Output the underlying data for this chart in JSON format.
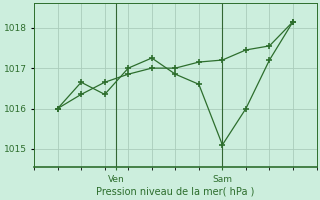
{
  "line_jagged_x": [
    0,
    1,
    2,
    3,
    4,
    5,
    6,
    7,
    8,
    9,
    10
  ],
  "line_jagged_y": [
    1016.0,
    1016.65,
    1016.35,
    1017.0,
    1017.25,
    1016.85,
    1016.6,
    1015.1,
    1016.0,
    1017.2,
    1018.15
  ],
  "line_trend_x": [
    0,
    1,
    2,
    3,
    4,
    5,
    6,
    7,
    8,
    9,
    10
  ],
  "line_trend_y": [
    1016.0,
    1016.35,
    1016.65,
    1016.85,
    1017.0,
    1017.0,
    1017.15,
    1017.2,
    1017.45,
    1017.55,
    1018.15
  ],
  "ven_x": 2.5,
  "sam_x": 7.0,
  "yticks": [
    1015,
    1016,
    1017,
    1018
  ],
  "ymin": 1014.55,
  "ymax": 1018.6,
  "xmin": -0.3,
  "xmax": 10.3,
  "line_color": "#2d6e2d",
  "bg_color": "#cceedd",
  "grid_color": "#aaccbb",
  "xlabel": "Pression niveau de la mer( hPa )",
  "tick_color": "#2d6e2d",
  "vline_color": "#336633",
  "ven_label": "Ven",
  "sam_label": "Sam"
}
